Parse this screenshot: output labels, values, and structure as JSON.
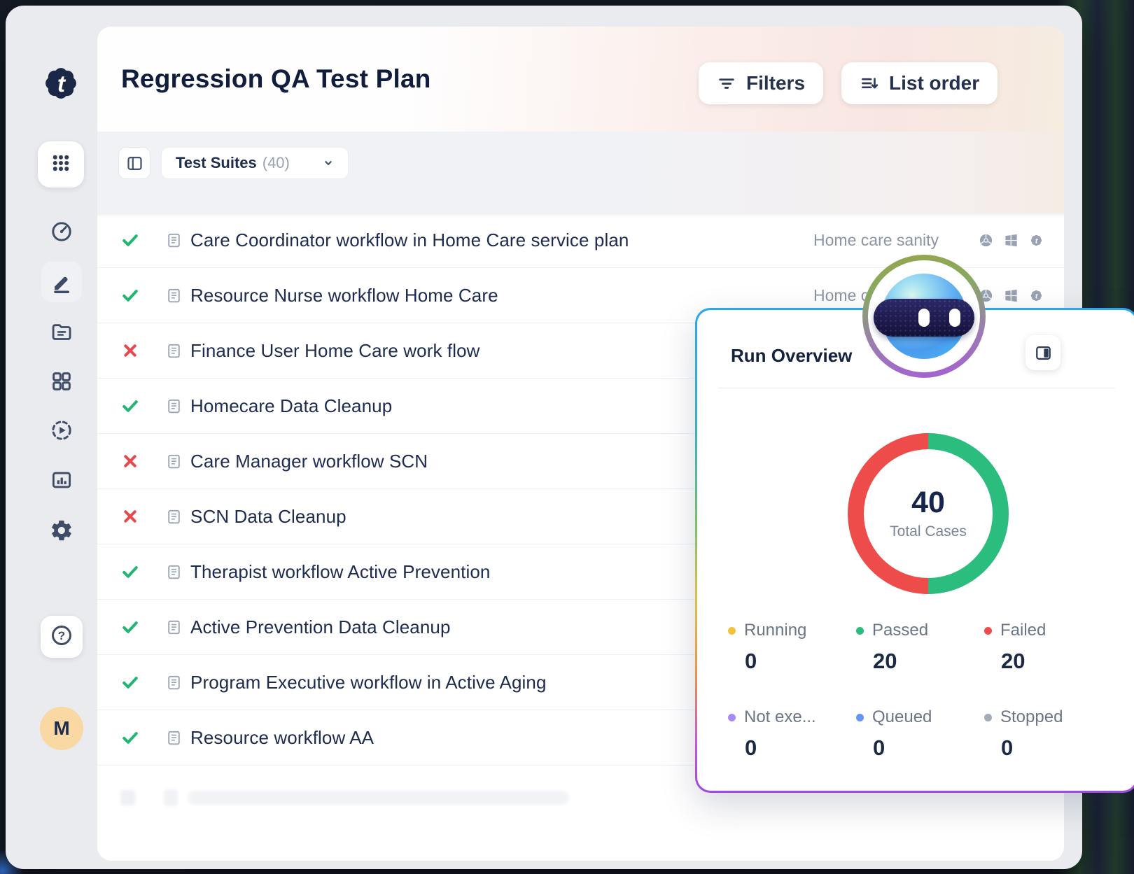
{
  "page": {
    "title": "Regression QA Test Plan"
  },
  "header": {
    "filters_label": "Filters",
    "list_order_label": "List order"
  },
  "toolbar": {
    "suites_label": "Test Suites",
    "suites_count": "(40)"
  },
  "sidebar": {
    "logo_icon": "testiny-gear-logo",
    "nav_icons": [
      "apps-grid-icon",
      "dashboard-gauge-icon",
      "edit-pencil-icon",
      "folder-icon",
      "components-icon",
      "test-run-play-icon",
      "reports-chart-icon",
      "settings-gear-icon"
    ],
    "help_icon": "help-circle-icon",
    "avatar_initial": "M"
  },
  "suites": {
    "rows": [
      {
        "status": "passed",
        "name": "Care Coordinator workflow in Home Care service plan",
        "tag": "Home care sanity",
        "integrations": [
          "chrome",
          "windows",
          "testiny"
        ]
      },
      {
        "status": "passed",
        "name": "Resource Nurse workflow Home Care",
        "tag": "Home care sanity",
        "integrations": [
          "chrome",
          "windows",
          "testiny"
        ]
      },
      {
        "status": "failed",
        "name": "Finance User Home Care work flow"
      },
      {
        "status": "passed",
        "name": "Homecare Data Cleanup"
      },
      {
        "status": "failed",
        "name": "Care Manager workflow SCN"
      },
      {
        "status": "failed",
        "name": "SCN Data Cleanup"
      },
      {
        "status": "passed",
        "name": "Therapist workflow Active Prevention"
      },
      {
        "status": "passed",
        "name": "Active Prevention Data Cleanup"
      },
      {
        "status": "passed",
        "name": "Program Executive workflow in Active Aging"
      },
      {
        "status": "passed",
        "name": "Resource workflow AA"
      }
    ]
  },
  "run_overview": {
    "title": "Run Overview",
    "expand_icon": "sidebar-right-icon",
    "center_value": "40",
    "center_label": "Total Cases",
    "stats": [
      {
        "label": "Running",
        "value": "0",
        "color": "#f0c33c"
      },
      {
        "label": "Passed",
        "value": "20",
        "color": "#2abd7e"
      },
      {
        "label": "Failed",
        "value": "20",
        "color": "#ee4b4b"
      },
      {
        "label": "Not exe...",
        "value": "0",
        "color": "#a78bfa"
      },
      {
        "label": "Queued",
        "value": "0",
        "color": "#6695f5"
      },
      {
        "label": "Stopped",
        "value": "0",
        "color": "#a3abb8"
      }
    ]
  },
  "chart_data": {
    "type": "pie",
    "donut": true,
    "title": "Run Overview",
    "categories": [
      "Running",
      "Passed",
      "Failed",
      "Not exe...",
      "Queued",
      "Stopped"
    ],
    "values": [
      0,
      20,
      20,
      0,
      0,
      0
    ],
    "colors": [
      "#f0c33c",
      "#2abd7e",
      "#ee4b4b",
      "#a78bfa",
      "#6695f5",
      "#a3abb8"
    ],
    "total": 40,
    "center_label": "Total Cases",
    "legend_position": "bottom"
  },
  "colors": {
    "navy_text": "#1d2b4f",
    "gray_text": "#8b94a5",
    "passed_green": "#22b573",
    "failed_red": "#e8494d",
    "panel_border_top": "#2da5ea",
    "panel_border_bottom": "#9d4be0"
  }
}
